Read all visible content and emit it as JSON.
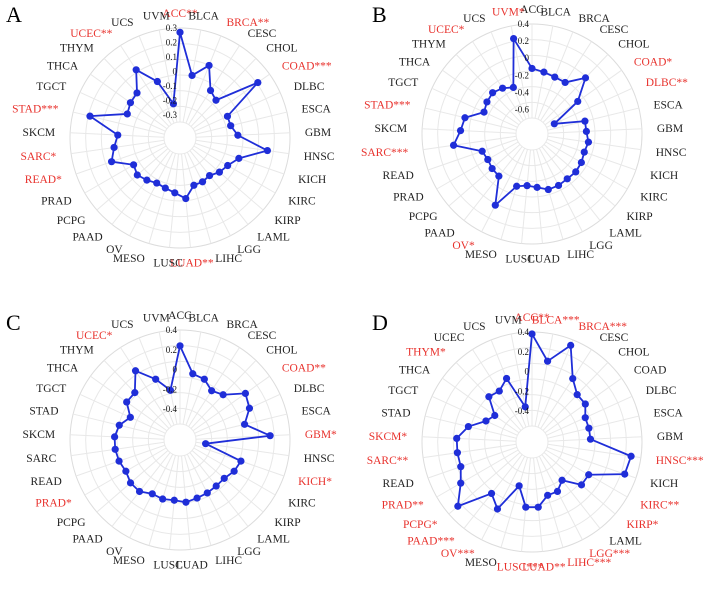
{
  "colors": {
    "normal": "#222222",
    "significant": "#e8322d",
    "series": "#1f2ed8",
    "grid": "#dcdcdc",
    "grid_inner": "#e8e8e8"
  },
  "chart_data": [
    {
      "panel": "A",
      "type": "radar",
      "categories": [
        "ACC",
        "BLCA",
        "BRCA",
        "CESC",
        "CHOL",
        "COAD",
        "DLBC",
        "ESCA",
        "GBM",
        "HNSC",
        "KICH",
        "KIRC",
        "KIRP",
        "LAML",
        "LGG",
        "LIHC",
        "LUAD",
        "LUSC",
        "MESO",
        "OV",
        "PAAD",
        "PCPG",
        "PRAD",
        "READ",
        "SARC",
        "SKCM",
        "STAD",
        "TGCT",
        "THCA",
        "THYM",
        "UCEC",
        "UCS",
        "UVM"
      ],
      "labels": [
        "ACC**",
        "BLCA",
        "BRCA**",
        "CESC",
        "CHOL",
        "COAD***",
        "DLBC",
        "ESCA",
        "GBM",
        "HNSC",
        "KICH",
        "KIRC",
        "KIRP",
        "LAML",
        "LGG",
        "LIHC",
        "LUAD**",
        "LUSC",
        "MESO",
        "OV",
        "PAAD",
        "PCPG",
        "PRAD",
        "READ*",
        "SARC*",
        "SKCM",
        "STAD***",
        "TGCT",
        "THCA",
        "THYM",
        "UCEC**",
        "UCS",
        "UVM"
      ],
      "significant": [
        true,
        false,
        true,
        false,
        false,
        true,
        false,
        false,
        false,
        false,
        false,
        false,
        false,
        false,
        false,
        false,
        true,
        false,
        false,
        false,
        false,
        false,
        false,
        true,
        true,
        false,
        true,
        false,
        false,
        false,
        true,
        false,
        false
      ],
      "values": [
        0.27,
        -0.02,
        0.08,
        -0.07,
        -0.1,
        0.2,
        -0.1,
        -0.1,
        -0.06,
        0.15,
        -0.03,
        -0.08,
        -0.1,
        -0.13,
        -0.12,
        -0.12,
        -0.04,
        -0.08,
        -0.1,
        -0.11,
        -0.09,
        -0.07,
        -0.09,
        0.04,
        0.0,
        -0.03,
        0.18,
        -0.06,
        -0.04,
        -0.03,
        0.1,
        -0.04,
        -0.22
      ],
      "ticks": [
        -0.3,
        -0.2,
        -0.1,
        0,
        0.1,
        0.2,
        0.3
      ],
      "tick_labels": [
        "-0.3",
        "-0.2",
        "-0.1",
        "0",
        "0.1",
        "0.2",
        "0.3"
      ],
      "rlim": [
        -0.35,
        0.3
      ]
    },
    {
      "panel": "B",
      "type": "radar",
      "categories": [
        "ACC",
        "BLCA",
        "BRCA",
        "CESC",
        "CHOL",
        "COAD",
        "DLBC",
        "ESCA",
        "GBM",
        "HNSC",
        "KICH",
        "KIRC",
        "KIRP",
        "LAML",
        "LGG",
        "LIHC",
        "LUAD",
        "LUSC",
        "MESO",
        "OV",
        "PAAD",
        "PCPG",
        "PRAD",
        "READ",
        "SARC",
        "SKCM",
        "STAD",
        "TGCT",
        "THCA",
        "THYM",
        "UCEC",
        "UCS",
        "UVM"
      ],
      "labels": [
        "ACC",
        "BLCA",
        "BRCA",
        "CESC",
        "CHOL",
        "COAD*",
        "DLBC**",
        "ESCA",
        "GBM",
        "HNSC",
        "KICH",
        "KIRC",
        "KIRP",
        "LAML",
        "LGG",
        "LIHC",
        "LUAD",
        "LUSC",
        "MESO",
        "OV*",
        "PAAD",
        "PCPG",
        "PRAD",
        "READ",
        "SARC***",
        "SKCM",
        "STAD***",
        "TGCT",
        "THCA",
        "THYM",
        "UCEC*",
        "UCS",
        "UVM*"
      ],
      "significant": [
        false,
        false,
        false,
        false,
        false,
        true,
        true,
        false,
        false,
        false,
        false,
        false,
        false,
        false,
        false,
        false,
        false,
        false,
        false,
        true,
        false,
        false,
        false,
        false,
        true,
        false,
        true,
        false,
        false,
        false,
        true,
        false,
        true
      ],
      "values": [
        -0.12,
        -0.15,
        -0.17,
        -0.17,
        0.02,
        -0.23,
        -0.6,
        -0.25,
        -0.25,
        -0.22,
        -0.24,
        -0.22,
        -0.21,
        -0.22,
        -0.21,
        -0.21,
        -0.26,
        -0.28,
        -0.25,
        0.05,
        -0.26,
        -0.27,
        -0.29,
        -0.27,
        0.04,
        -0.05,
        -0.08,
        -0.27,
        -0.24,
        -0.22,
        -0.25,
        -0.3,
        0.25
      ],
      "ticks": [
        -0.6,
        -0.4,
        -0.2,
        0,
        0.2,
        0.4
      ],
      "tick_labels": [
        "-0.6",
        "-0.4",
        "-0.2",
        "0",
        "0.2",
        "0.4"
      ],
      "rlim": [
        -0.7,
        0.4
      ]
    },
    {
      "panel": "C",
      "type": "radar",
      "categories": [
        "ACC",
        "BLCA",
        "BRCA",
        "CESC",
        "CHOL",
        "COAD",
        "DLBC",
        "ESCA",
        "GBM",
        "HNSC",
        "KICH",
        "KIRC",
        "KIRP",
        "LAML",
        "LGG",
        "LIHC",
        "LUAD",
        "LUSC",
        "MESO",
        "OV",
        "PAAD",
        "PCPG",
        "PRAD",
        "READ",
        "SARC",
        "SKCM",
        "STAD",
        "TGCT",
        "THCA",
        "THYM",
        "UCEC",
        "UCS",
        "UVM"
      ],
      "labels": [
        "ACC",
        "BLCA",
        "BRCA",
        "CESC",
        "CHOL",
        "COAD**",
        "DLBC",
        "ESCA",
        "GBM*",
        "HNSC",
        "KICH*",
        "KIRC",
        "KIRP",
        "LAML",
        "LGG",
        "LIHC",
        "LUAD",
        "LUSC",
        "MESO",
        "OV",
        "PAAD",
        "PCPG",
        "PRAD*",
        "READ",
        "SARC",
        "SKCM",
        "STAD",
        "TGCT",
        "THCA",
        "THYM",
        "UCEC*",
        "UCS",
        "UVM"
      ],
      "significant": [
        false,
        false,
        false,
        false,
        false,
        true,
        false,
        false,
        true,
        false,
        true,
        false,
        false,
        false,
        false,
        false,
        false,
        false,
        false,
        false,
        false,
        false,
        true,
        false,
        false,
        false,
        false,
        false,
        false,
        false,
        true,
        false,
        false
      ],
      "values": [
        0.24,
        -0.03,
        -0.05,
        -0.12,
        -0.08,
        0.1,
        0.06,
        -0.04,
        0.2,
        -0.45,
        -0.06,
        -0.08,
        -0.12,
        -0.12,
        -0.11,
        -0.1,
        -0.08,
        -0.1,
        -0.09,
        -0.1,
        -0.05,
        -0.05,
        -0.08,
        -0.06,
        -0.05,
        -0.05,
        -0.08,
        -0.16,
        -0.05,
        -0.05,
        0.12,
        -0.05,
        -0.2
      ],
      "ticks": [
        -0.4,
        -0.2,
        0,
        0.2,
        0.4
      ],
      "tick_labels": [
        "-0.4",
        "-0.2",
        "0",
        "0.2",
        "0.4"
      ],
      "rlim": [
        -0.55,
        0.4
      ]
    },
    {
      "panel": "D",
      "type": "radar",
      "categories": [
        "ACC",
        "BLCA",
        "BRCA",
        "CESC",
        "CHOL",
        "COAD",
        "DLBC",
        "ESCA",
        "GBM",
        "HNSC",
        "KICH",
        "KIRC",
        "KIRP",
        "LAML",
        "LGG",
        "LIHC",
        "LUAD",
        "LUSC",
        "MESO",
        "OV",
        "PAAD",
        "PCPG",
        "PRAD",
        "READ",
        "SARC",
        "SKCM",
        "STAD",
        "TGCT",
        "THCA",
        "THYM",
        "UCEC",
        "UCS",
        "UVM"
      ],
      "labels": [
        "ACC**",
        "BLCA***",
        "BRCA***",
        "CESC",
        "CHOL",
        "COAD",
        "DLBC",
        "ESCA",
        "GBM",
        "HNSC***",
        "KICH",
        "KIRC**",
        "KIRP*",
        "LAML",
        "LGG***",
        "LIHC***",
        "LUAD**",
        "LUSC***",
        "MESO",
        "OV***",
        "PAAD***",
        "PCPG*",
        "PRAD**",
        "READ",
        "SARC**",
        "SKCM*",
        "STAD",
        "TGCT",
        "THCA",
        "THYM*",
        "UCEC",
        "UCS",
        "UVM"
      ],
      "significant": [
        true,
        true,
        true,
        false,
        false,
        false,
        false,
        false,
        false,
        true,
        false,
        true,
        true,
        false,
        true,
        true,
        true,
        true,
        false,
        true,
        true,
        true,
        true,
        false,
        true,
        true,
        false,
        false,
        false,
        true,
        false,
        false,
        false
      ],
      "values": [
        0.38,
        0.12,
        0.34,
        0.05,
        -0.05,
        -0.05,
        -0.12,
        -0.12,
        -0.12,
        0.3,
        0.28,
        -0.05,
        -0.05,
        -0.22,
        -0.15,
        -0.15,
        -0.05,
        -0.05,
        -0.25,
        0.05,
        -0.05,
        0.28,
        0.12,
        0.05,
        0.05,
        0.05,
        -0.05,
        -0.2,
        -0.25,
        -0.08,
        -0.1,
        -0.02,
        -0.35
      ],
      "ticks": [
        -0.4,
        -0.2,
        0,
        0.2,
        0.4
      ],
      "tick_labels": [
        "-0.4",
        "-0.2",
        "0",
        "0.2",
        "0.4"
      ],
      "rlim": [
        -0.55,
        0.4
      ]
    }
  ]
}
